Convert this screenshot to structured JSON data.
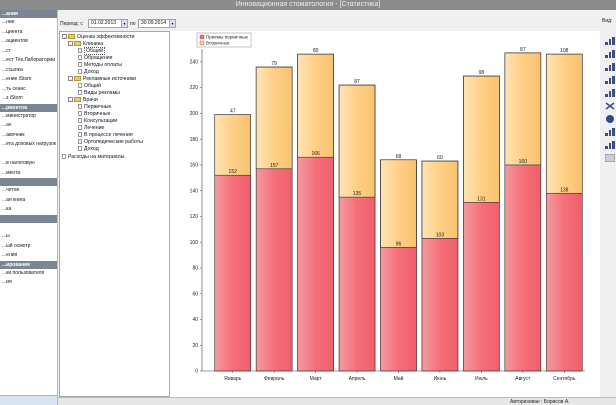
{
  "window": {
    "title": "Инновационная стоматология - [Статистика]"
  },
  "sidebar": {
    "items": [
      {
        "type": "header",
        "label": "...ания"
      },
      {
        "type": "item",
        "label": "...ние"
      },
      {
        "type": "item",
        "label": "...циента"
      },
      {
        "type": "item",
        "label": "...ациентов"
      },
      {
        "type": "item",
        "label": "...ст"
      },
      {
        "type": "item",
        "label": "...ест Тех.Лаборатории"
      },
      {
        "type": "item",
        "label": "...ссылка"
      },
      {
        "type": "item",
        "label": "...ение iStom"
      },
      {
        "type": "item",
        "label": "...ть сеанс"
      },
      {
        "type": "item",
        "label": "...з iStom"
      },
      {
        "type": "header",
        "label": "...рментов"
      },
      {
        "type": "item",
        "label": "...министратор"
      },
      {
        "type": "item",
        "label": "...ач"
      },
      {
        "type": "item",
        "label": "...авочник"
      },
      {
        "type": "item",
        "label": "...ета доховых нагрузок"
      },
      {
        "type": "blank",
        "label": ""
      },
      {
        "type": "item",
        "label": "...в налоговую"
      },
      {
        "type": "item",
        "label": "...мента"
      },
      {
        "type": "header",
        "label": ""
      },
      {
        "type": "item",
        "label": "...четов"
      },
      {
        "type": "item",
        "label": "...ая книга"
      },
      {
        "type": "item",
        "label": "...ка"
      },
      {
        "type": "header",
        "label": ""
      },
      {
        "type": "blank",
        "label": ""
      },
      {
        "type": "item",
        "label": "...ы"
      },
      {
        "type": "item",
        "label": "...ый осмотр"
      },
      {
        "type": "item",
        "label": "...ения"
      },
      {
        "type": "header",
        "label": "...ирование"
      },
      {
        "type": "item",
        "label": "...ки пользователя"
      },
      {
        "type": "item",
        "label": "...ия"
      }
    ]
  },
  "toolbar": {
    "period_label": "Период: с",
    "date_from": "01.02.2013",
    "to_label": "по",
    "date_to": "30.09.2014",
    "view_label": "Вид:"
  },
  "tree": {
    "items": [
      {
        "level": 0,
        "icon": "folder",
        "expander": "-",
        "label": "Оценка эффективности",
        "selected": false
      },
      {
        "level": 1,
        "icon": "folder",
        "expander": "-",
        "label": "Клиника",
        "selected": false
      },
      {
        "level": 2,
        "icon": "page",
        "expander": "",
        "label": "Общий",
        "selected": true
      },
      {
        "level": 2,
        "icon": "page",
        "expander": "",
        "label": "Обращения",
        "selected": false
      },
      {
        "level": 2,
        "icon": "page",
        "expander": "",
        "label": "Методы оплаты",
        "selected": false
      },
      {
        "level": 2,
        "icon": "page",
        "expander": "",
        "label": "Доход",
        "selected": false
      },
      {
        "level": 1,
        "icon": "folder",
        "expander": "-",
        "label": "Рекламные источники",
        "selected": false
      },
      {
        "level": 2,
        "icon": "page",
        "expander": "",
        "label": "Общий",
        "selected": false
      },
      {
        "level": 2,
        "icon": "page",
        "expander": "",
        "label": "Виды рекламы",
        "selected": false
      },
      {
        "level": 1,
        "icon": "folder",
        "expander": "-",
        "label": "Врачи",
        "selected": false
      },
      {
        "level": 2,
        "icon": "page",
        "expander": "",
        "label": "Первичные",
        "selected": false
      },
      {
        "level": 2,
        "icon": "page",
        "expander": "",
        "label": "Вторичные",
        "selected": false
      },
      {
        "level": 2,
        "icon": "page",
        "expander": "",
        "label": "Консультации",
        "selected": false
      },
      {
        "level": 2,
        "icon": "page",
        "expander": "",
        "label": "Лечение",
        "selected": false
      },
      {
        "level": 2,
        "icon": "page",
        "expander": "",
        "label": "В процессе лечения",
        "selected": false
      },
      {
        "level": 2,
        "icon": "page",
        "expander": "",
        "label": "Ортопедические работы",
        "selected": false
      },
      {
        "level": 2,
        "icon": "page",
        "expander": "",
        "label": "Доход",
        "selected": false
      },
      {
        "level": 0,
        "icon": "page",
        "expander": "",
        "label": "Расходы на материалы",
        "selected": false
      }
    ]
  },
  "chart_data": {
    "type": "bar",
    "stacked": true,
    "categories": [
      "Январь",
      "Февраль",
      "Март",
      "Апрель",
      "Май",
      "Июнь",
      "Июль",
      "Август",
      "Сентябрь"
    ],
    "series": [
      {
        "name": "Приемы первичные",
        "values": [
          152,
          157,
          166,
          135,
          96,
          103,
          131,
          160,
          138
        ],
        "color": "#f56f7a"
      },
      {
        "name": "Вторичные",
        "values": [
          47,
          79,
          80,
          87,
          68,
          60,
          98,
          87,
          108
        ],
        "color": "#ffcf86"
      }
    ],
    "ylim": [
      0,
      250
    ],
    "yticks": [
      0,
      20,
      40,
      60,
      80,
      100,
      120,
      140,
      160,
      180,
      200,
      220,
      240
    ],
    "grid": false,
    "legend": "top-left"
  },
  "rightbar": {
    "icons": [
      "bar-chart-icon",
      "stacked-bar-icon",
      "horizontal-bar-icon",
      "list-icon",
      "line-chart-icon",
      "x-mark-icon",
      "pie-icon",
      "area-icon",
      "settings-icon",
      "table-icon"
    ]
  },
  "status": {
    "text": "Авторизован : Борисов А."
  }
}
